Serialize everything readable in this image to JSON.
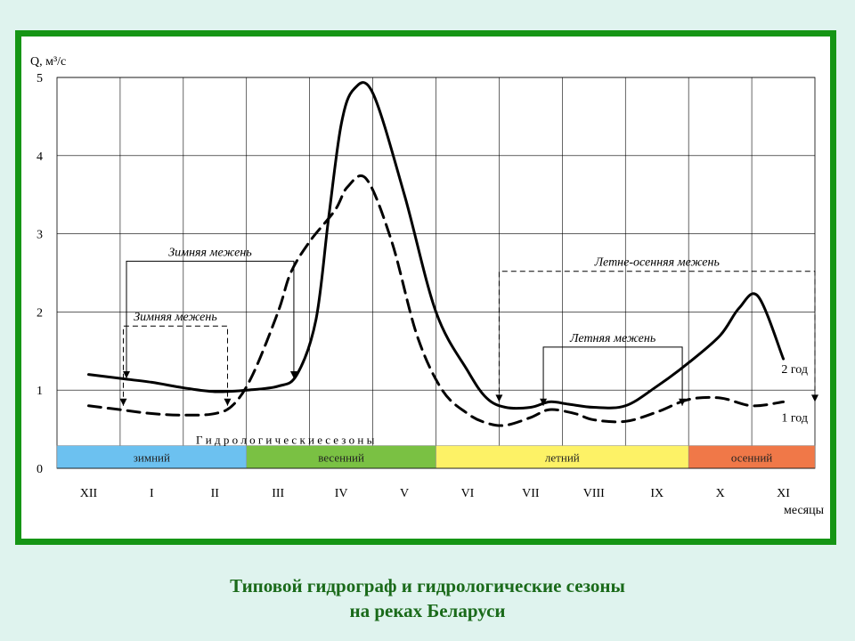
{
  "chart_data": {
    "type": "line",
    "ylabel": "Q, м³/с",
    "xlabel": "месяцы",
    "ylim": [
      0,
      5
    ],
    "yticks": [
      0,
      1,
      2,
      3,
      4,
      5
    ],
    "categories": [
      "XII",
      "I",
      "II",
      "III",
      "IV",
      "V",
      "VI",
      "VII",
      "VIII",
      "IX",
      "X",
      "XI"
    ],
    "grid": true,
    "series": [
      {
        "name": "2 год",
        "style": "solid",
        "x": [
          0.0,
          0.5,
          1.0,
          1.5,
          2.0,
          2.5,
          3.0,
          3.3,
          3.6,
          3.8,
          4.0,
          4.2,
          4.5,
          5.0,
          5.5,
          6.0,
          6.3,
          6.6,
          7.0,
          7.3,
          7.6,
          8.0,
          8.5,
          9.0,
          9.5,
          10.0,
          10.3,
          10.6,
          11.0
        ],
        "values": [
          1.2,
          1.15,
          1.1,
          1.03,
          0.98,
          1.0,
          1.05,
          1.2,
          1.9,
          3.2,
          4.4,
          4.85,
          4.8,
          3.5,
          2.0,
          1.25,
          0.9,
          0.78,
          0.78,
          0.85,
          0.82,
          0.78,
          0.8,
          1.05,
          1.35,
          1.7,
          2.05,
          2.2,
          1.4
        ]
      },
      {
        "name": "1 год",
        "style": "dashed",
        "x": [
          0.0,
          0.5,
          1.0,
          1.5,
          2.0,
          2.3,
          2.6,
          3.0,
          3.2,
          3.5,
          3.9,
          4.1,
          4.4,
          4.8,
          5.2,
          5.6,
          6.0,
          6.3,
          6.6,
          7.0,
          7.3,
          7.7,
          8.0,
          8.5,
          9.0,
          9.5,
          10.0,
          10.5,
          11.0
        ],
        "values": [
          0.8,
          0.75,
          0.7,
          0.68,
          0.7,
          0.82,
          1.2,
          2.0,
          2.5,
          2.9,
          3.3,
          3.6,
          3.7,
          2.9,
          1.7,
          1.0,
          0.7,
          0.58,
          0.55,
          0.65,
          0.75,
          0.7,
          0.62,
          0.6,
          0.72,
          0.88,
          0.9,
          0.8,
          0.85
        ]
      }
    ],
    "seasons_title": "Г и д р о л о г и ч е с к и е   с е з о н ы",
    "seasons": [
      {
        "label": "зимний",
        "start": 0,
        "end": 3,
        "color": "#6cc1f0"
      },
      {
        "label": "весенний",
        "start": 3,
        "end": 6,
        "color": "#7ac143"
      },
      {
        "label": "летний",
        "start": 6,
        "end": 10,
        "color": "#fdf266"
      },
      {
        "label": "осенний",
        "start": 10,
        "end": 12,
        "color": "#f07848"
      }
    ],
    "annotations": [
      {
        "label": "Зимняя межень",
        "style": "solid",
        "start": 0.6,
        "end": 3.25,
        "level": 2.65,
        "bottom": 1.15
      },
      {
        "label": "Зимняя межень",
        "style": "dashed",
        "start": 0.55,
        "end": 2.2,
        "level": 1.82,
        "bottom": 0.8
      },
      {
        "label": "Летне-осенняя межень",
        "style": "dashed",
        "start": 6.5,
        "end": 11.5,
        "level": 2.52,
        "bottom": 0.85
      },
      {
        "label": "Летняя межень",
        "style": "solid",
        "start": 7.2,
        "end": 9.4,
        "level": 1.55,
        "bottom": 0.8
      }
    ]
  },
  "caption": {
    "line1": "Типовой гидрограф и гидрологические сезоны",
    "line2": "на реках Беларуси"
  }
}
